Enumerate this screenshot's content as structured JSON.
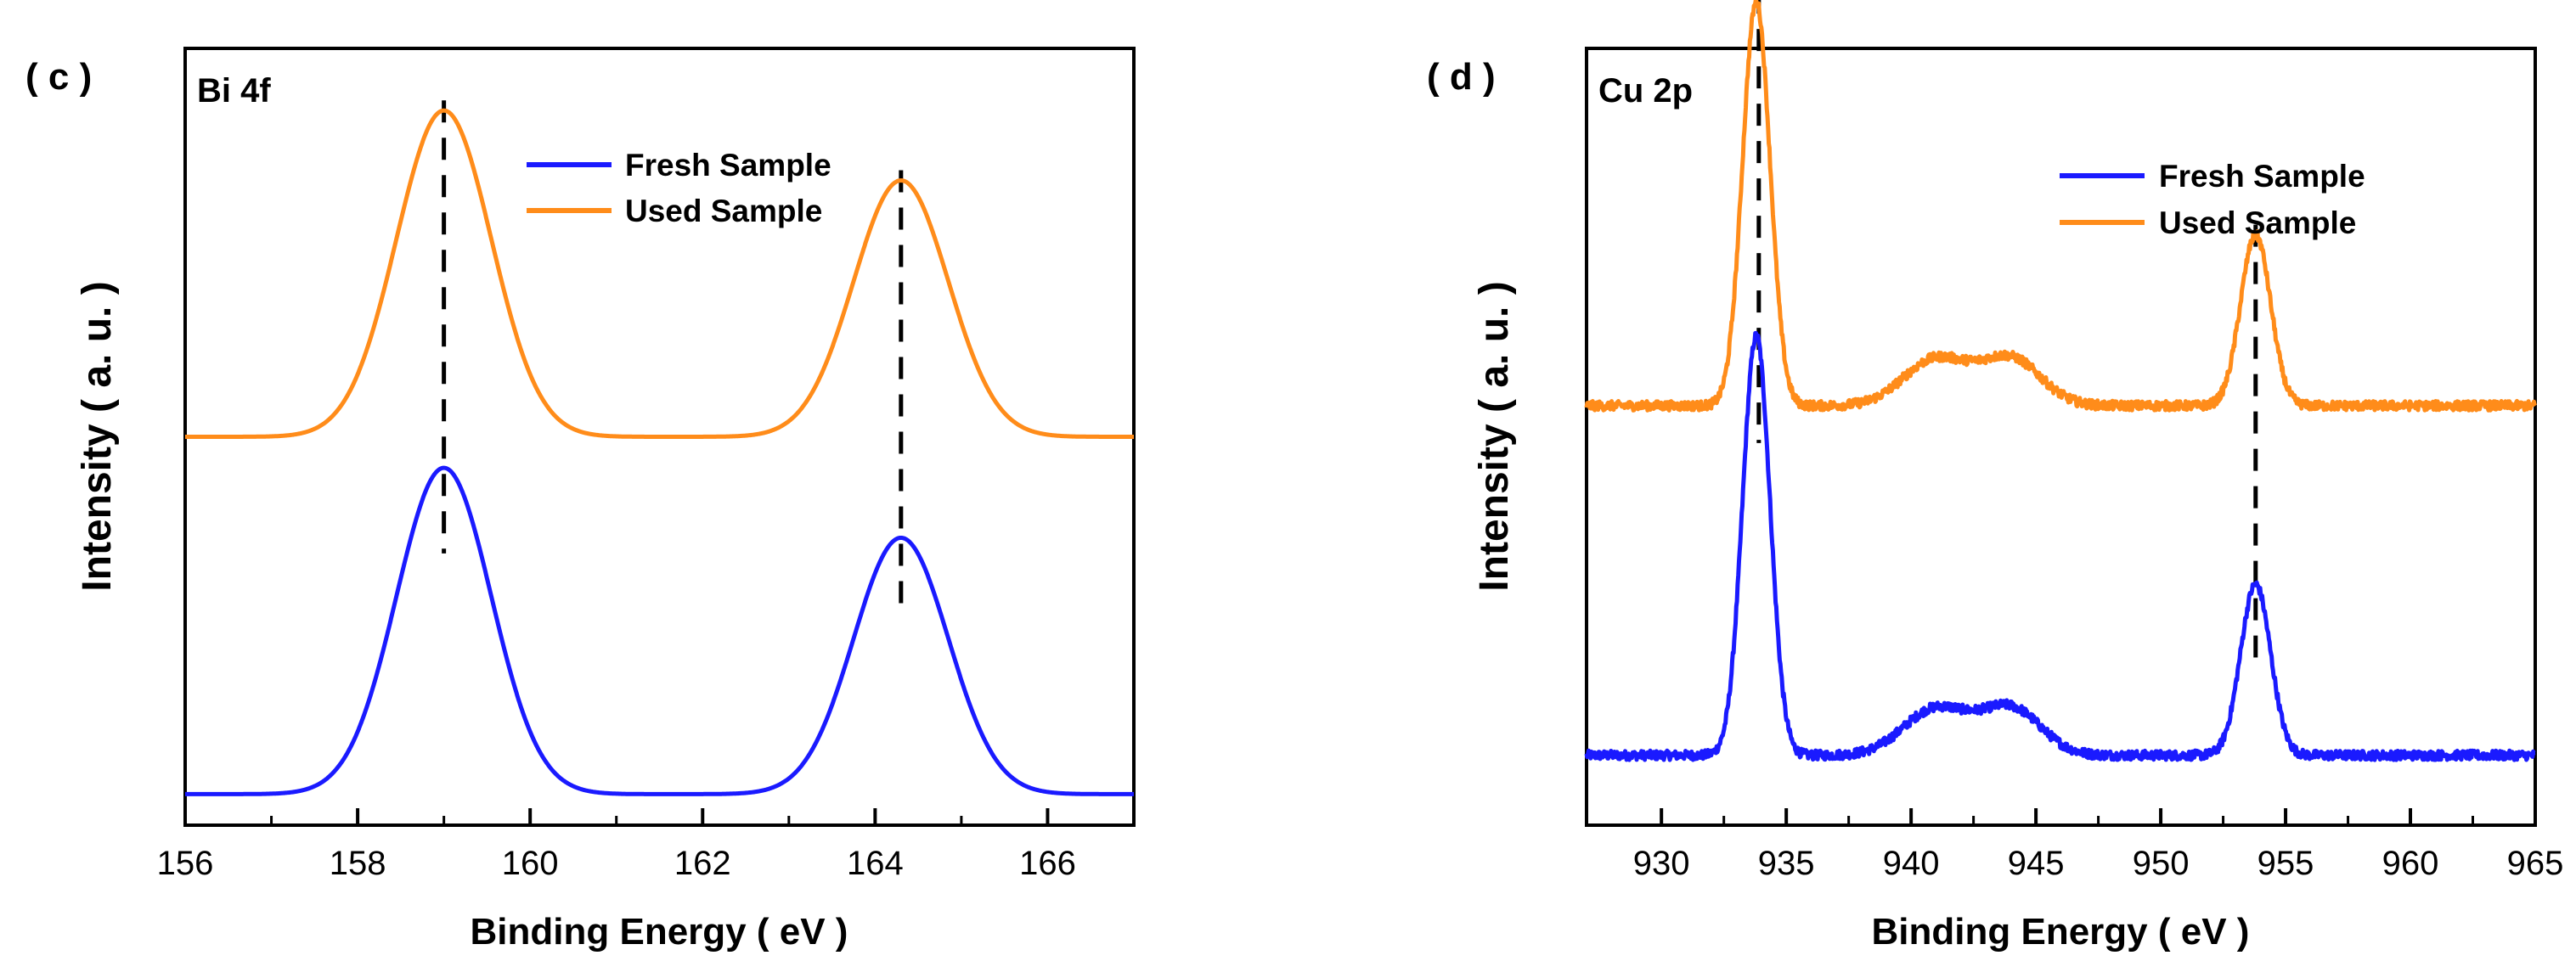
{
  "colors": {
    "fresh": "#1a1aff",
    "used": "#ff8c1a",
    "axis": "#000000"
  },
  "chart_data": [
    {
      "type": "line",
      "panel_label": "( c )",
      "title": "Bi 4f",
      "xlabel": "Binding Energy ( eV )",
      "ylabel": "Intensity ( a. u. )",
      "xlim": [
        156,
        167
      ],
      "ylim": [
        0,
        1
      ],
      "xticks": [
        156,
        158,
        160,
        162,
        164,
        166
      ],
      "grid": false,
      "legend": {
        "position": "top-center",
        "entries": [
          "Fresh Sample",
          "Used Sample"
        ]
      },
      "reference_lines_x": [
        159.0,
        164.3
      ],
      "series": [
        {
          "name": "Fresh Sample",
          "baseline": 0.04,
          "noise": 0,
          "peaks": [
            {
              "center": 159.0,
              "height": 0.42,
              "width": 0.55
            },
            {
              "center": 164.3,
              "height": 0.33,
              "width": 0.55
            }
          ]
        },
        {
          "name": "Used Sample",
          "baseline": 0.5,
          "noise": 0,
          "peaks": [
            {
              "center": 159.0,
              "height": 0.42,
              "width": 0.55
            },
            {
              "center": 164.3,
              "height": 0.33,
              "width": 0.55
            }
          ]
        }
      ]
    },
    {
      "type": "line",
      "panel_label": "( d )",
      "title": "Cu 2p",
      "xlabel": "Binding Energy ( eV )",
      "ylabel": "Intensity ( a. u. )",
      "xlim": [
        927,
        965
      ],
      "ylim": [
        0,
        1
      ],
      "xticks": [
        930,
        935,
        940,
        945,
        950,
        955,
        960,
        965
      ],
      "grid": false,
      "legend": {
        "position": "top-right",
        "entries": [
          "Fresh Sample",
          "Used Sample"
        ]
      },
      "reference_lines_x": [
        933.9,
        953.8
      ],
      "series": [
        {
          "name": "Fresh Sample",
          "baseline": 0.09,
          "noise": 0.006,
          "peaks": [
            {
              "center": 933.8,
              "height": 0.54,
              "width": 0.55
            },
            {
              "center": 941.0,
              "height": 0.06,
              "width": 1.3
            },
            {
              "center": 944.0,
              "height": 0.06,
              "width": 1.2
            },
            {
              "center": 953.8,
              "height": 0.22,
              "width": 0.6
            }
          ]
        },
        {
          "name": "Used Sample",
          "baseline": 0.54,
          "noise": 0.006,
          "peaks": [
            {
              "center": 933.8,
              "height": 0.52,
              "width": 0.55
            },
            {
              "center": 941.0,
              "height": 0.06,
              "width": 1.3
            },
            {
              "center": 944.0,
              "height": 0.06,
              "width": 1.2
            },
            {
              "center": 953.8,
              "height": 0.22,
              "width": 0.6
            }
          ]
        }
      ]
    }
  ]
}
